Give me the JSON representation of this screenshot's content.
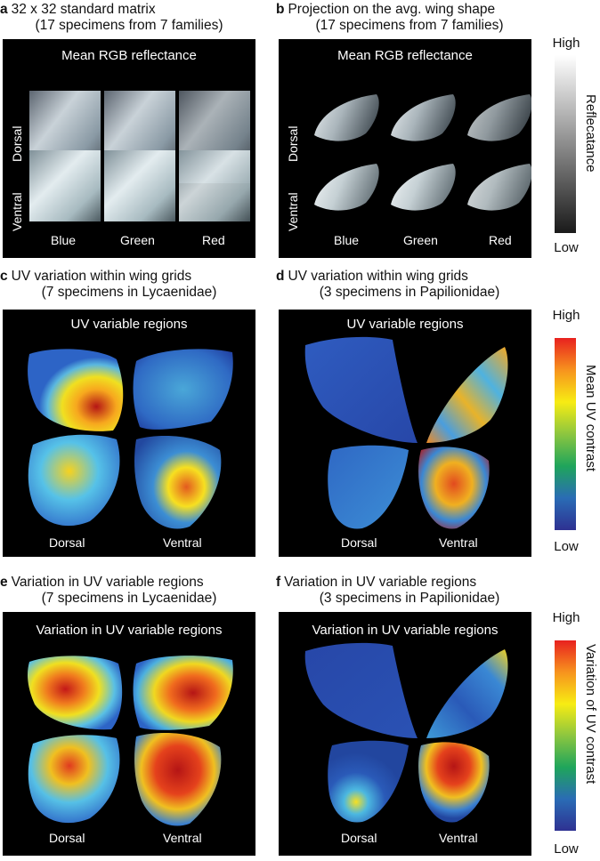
{
  "panels": {
    "a": {
      "letter": "a",
      "title": "32 x 32 standard matrix",
      "subtitle": "(17 specimens from 7 families)",
      "inner_title": "Mean RGB reflectance",
      "rows": [
        "Dorsal",
        "Ventral"
      ],
      "cols": [
        "Blue",
        "Green",
        "Red"
      ]
    },
    "b": {
      "letter": "b",
      "title": "Projection on the avg. wing shape",
      "subtitle": "(17 specimens from 7 families)",
      "inner_title": "Mean RGB reflectance",
      "rows": [
        "Dorsal",
        "Ventral"
      ],
      "cols": [
        "Blue",
        "Green",
        "Red"
      ]
    },
    "c": {
      "letter": "c",
      "title": "UV variation within wing grids",
      "subtitle": "(7 specimens in Lycaenidae)",
      "inner_title": "UV variable regions",
      "left": "Dorsal",
      "right": "Ventral"
    },
    "d": {
      "letter": "d",
      "title": "UV variation within wing grids",
      "subtitle": "(3 specimens in Papilionidae)",
      "inner_title": "UV variable regions",
      "left": "Dorsal",
      "right": "Ventral"
    },
    "e": {
      "letter": "e",
      "title": "Variation in UV variable regions",
      "subtitle": "(7 specimens in Lycaenidae)",
      "inner_title": "Variation in UV variable regions",
      "left": "Dorsal",
      "right": "Ventral"
    },
    "f": {
      "letter": "f",
      "title": "Variation in UV variable regions",
      "subtitle": "(3 specimens in Papilionidae)",
      "inner_title": "Variation in UV variable regions",
      "left": "Dorsal",
      "right": "Ventral"
    }
  },
  "colorbars": {
    "reflectance": {
      "high": "High",
      "low": "Low",
      "title": "Reflecatance",
      "colors": [
        "#ffffff",
        "#1a1a1a"
      ]
    },
    "uv_contrast": {
      "high": "High",
      "low": "Low",
      "title": "Mean UV contrast",
      "colors": [
        "#e8211f",
        "#f7931e",
        "#f7ec13",
        "#8cc63f",
        "#1fa55b",
        "#2a6cb5",
        "#2e3192"
      ]
    },
    "uv_variation": {
      "high": "High",
      "low": "Low",
      "title": "Variation of UV contrast",
      "colors": [
        "#e8211f",
        "#f7931e",
        "#f7ec13",
        "#8cc63f",
        "#1fa55b",
        "#2a6cb5",
        "#2e3192"
      ]
    }
  },
  "colors": {
    "background": "#000000",
    "jet_low": "#1f3a9c",
    "jet_high": "#b51515"
  }
}
